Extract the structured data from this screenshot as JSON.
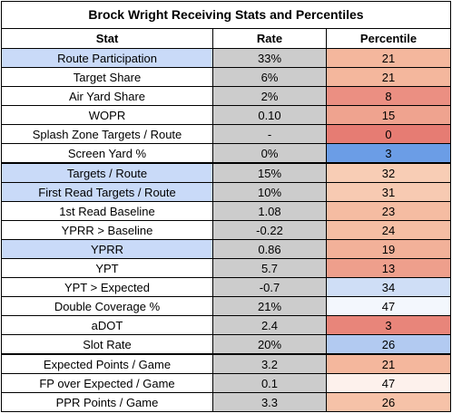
{
  "table": {
    "title": "Brock Wright Receiving Stats and Percentiles",
    "headers": {
      "stat": "Stat",
      "rate": "Rate",
      "percentile": "Percentile"
    },
    "rows": [
      {
        "stat": "Route Participation",
        "rate": "33%",
        "percentile": "21",
        "stat_highlight": true,
        "pct_color": "#f4b79d"
      },
      {
        "stat": "Target Share",
        "rate": "6%",
        "percentile": "21",
        "stat_highlight": false,
        "pct_color": "#f4b79d"
      },
      {
        "stat": "Air Yard Share",
        "rate": "2%",
        "percentile": "8",
        "stat_highlight": false,
        "pct_color": "#eb8f82"
      },
      {
        "stat": "WOPR",
        "rate": "0.10",
        "percentile": "15",
        "stat_highlight": false,
        "pct_color": "#efa38f"
      },
      {
        "stat": "Splash Zone Targets / Route",
        "rate": "-",
        "percentile": "0",
        "stat_highlight": false,
        "pct_color": "#e67c73"
      },
      {
        "stat": "Screen Yard %",
        "rate": "0%",
        "percentile": "3",
        "stat_highlight": false,
        "pct_color": "#6b9de6"
      },
      {
        "stat": "Targets / Route",
        "rate": "15%",
        "percentile": "32",
        "stat_highlight": true,
        "pct_color": "#f8cdb5"
      },
      {
        "stat": "First Read Targets / Route",
        "rate": "10%",
        "percentile": "31",
        "stat_highlight": true,
        "pct_color": "#f7cab2"
      },
      {
        "stat": "1st Read Baseline",
        "rate": "1.08",
        "percentile": "23",
        "stat_highlight": false,
        "pct_color": "#f5bca2"
      },
      {
        "stat": "YPRR > Baseline",
        "rate": "-0.22",
        "percentile": "24",
        "stat_highlight": false,
        "pct_color": "#f5bea4"
      },
      {
        "stat": "YPRR",
        "rate": "0.86",
        "percentile": "19",
        "stat_highlight": true,
        "pct_color": "#f2b199"
      },
      {
        "stat": "YPT",
        "rate": "5.7",
        "percentile": "13",
        "stat_highlight": false,
        "pct_color": "#ee9f8c"
      },
      {
        "stat": "YPT > Expected",
        "rate": "-0.7",
        "percentile": "34",
        "stat_highlight": false,
        "pct_color": "#cfdef6"
      },
      {
        "stat": "Double Coverage %",
        "rate": "21%",
        "percentile": "47",
        "stat_highlight": false,
        "pct_color": "#f3f7fd"
      },
      {
        "stat": "aDOT",
        "rate": "2.4",
        "percentile": "3",
        "stat_highlight": false,
        "pct_color": "#e8857a"
      },
      {
        "stat": "Slot Rate",
        "rate": "20%",
        "percentile": "26",
        "stat_highlight": false,
        "pct_color": "#b2caf1"
      },
      {
        "stat": "Expected Points / Game",
        "rate": "3.2",
        "percentile": "21",
        "stat_highlight": false,
        "pct_color": "#f4b79d"
      },
      {
        "stat": "FP over Expected / Game",
        "rate": "0.1",
        "percentile": "47",
        "stat_highlight": false,
        "pct_color": "#fdf1ec"
      },
      {
        "stat": "PPR Points / Game",
        "rate": "3.3",
        "percentile": "26",
        "stat_highlight": false,
        "pct_color": "#f6c2a8"
      }
    ]
  }
}
